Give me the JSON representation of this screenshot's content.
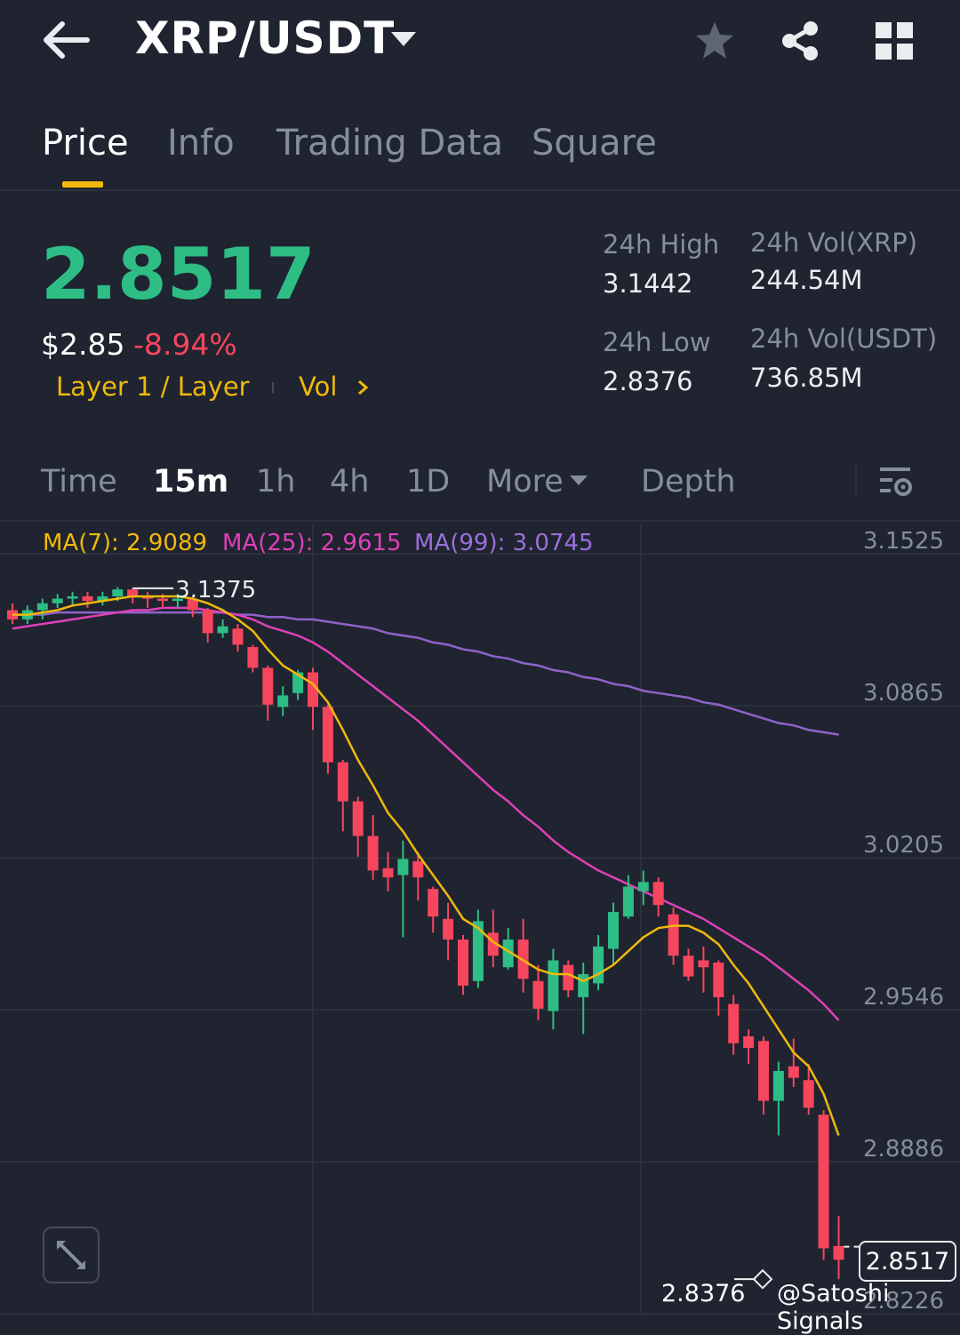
{
  "header": {
    "back_icon": "arrow-left-icon",
    "pair": "XRP/USDT",
    "icons": [
      "star-icon",
      "share-icon",
      "grid-icon"
    ]
  },
  "tabs": [
    {
      "label": "Price",
      "active": true
    },
    {
      "label": "Info"
    },
    {
      "label": "Trading Data"
    },
    {
      "label": "Square"
    }
  ],
  "ticker": {
    "price": "2.8517",
    "usd_price": "$2.85",
    "change": "-8.94%",
    "tag": "Layer 1 / Layer",
    "vol_link": "Vol",
    "stats": {
      "high_label": "24h High",
      "high": "3.1442",
      "low_label": "24h Low",
      "low": "2.8376",
      "vol_xrp_label": "24h Vol(XRP)",
      "vol_xrp": "244.54M",
      "vol_usdt_label": "24h Vol(USDT)",
      "vol_usdt": "736.85M"
    }
  },
  "intervals": {
    "items": [
      "Time",
      "15m",
      "1h",
      "4h",
      "1D",
      "More",
      "Depth"
    ],
    "active": "15m"
  },
  "ma": {
    "ma7": "MA(7): 2.9089",
    "ma25": "MA(25): 2.9615",
    "ma99": "MA(99): 3.0745"
  },
  "colors": {
    "up": "#2ebd85",
    "down": "#f6465d",
    "accent": "#f0b90b",
    "ma7": "#f0b90b",
    "ma25": "#e040b8",
    "ma99": "#8e63c9"
  },
  "chart_data": {
    "type": "candlestick",
    "y_ticks": [
      "3.1525",
      "3.0865",
      "3.0205",
      "2.9546",
      "2.8886",
      "2.8226"
    ],
    "ylim": [
      2.81,
      3.175
    ],
    "high_marker": "3.1375",
    "low_marker": "2.8376",
    "last_price": "2.8517",
    "watermark": "@Satoshi Signals",
    "candles": [
      [
        3.128,
        3.124,
        3.131,
        3.122
      ],
      [
        3.124,
        3.128,
        3.13,
        3.122
      ],
      [
        3.128,
        3.131,
        3.133,
        3.124
      ],
      [
        3.131,
        3.133,
        3.135,
        3.129
      ],
      [
        3.133,
        3.134,
        3.136,
        3.13
      ],
      [
        3.134,
        3.132,
        3.136,
        3.129
      ],
      [
        3.132,
        3.134,
        3.136,
        3.13
      ],
      [
        3.134,
        3.137,
        3.138,
        3.132
      ],
      [
        3.137,
        3.134,
        3.1375,
        3.131
      ],
      [
        3.134,
        3.133,
        3.136,
        3.129
      ],
      [
        3.133,
        3.132,
        3.135,
        3.129
      ],
      [
        3.132,
        3.133,
        3.135,
        3.129
      ],
      [
        3.133,
        3.128,
        3.134,
        3.125
      ],
      [
        3.128,
        3.118,
        3.129,
        3.114
      ],
      [
        3.118,
        3.121,
        3.124,
        3.116
      ],
      [
        3.12,
        3.113,
        3.122,
        3.11
      ],
      [
        3.112,
        3.103,
        3.113,
        3.101
      ],
      [
        3.103,
        3.087,
        3.104,
        3.08
      ],
      [
        3.086,
        3.091,
        3.095,
        3.082
      ],
      [
        3.092,
        3.101,
        3.102,
        3.089
      ],
      [
        3.101,
        3.086,
        3.103,
        3.076
      ],
      [
        3.086,
        3.062,
        3.087,
        3.057
      ],
      [
        3.062,
        3.045,
        3.063,
        3.032
      ],
      [
        3.045,
        3.03,
        3.047,
        3.021
      ],
      [
        3.03,
        3.015,
        3.039,
        3.011
      ],
      [
        3.016,
        3.012,
        3.023,
        3.006
      ],
      [
        3.013,
        3.02,
        3.028,
        2.986
      ],
      [
        3.019,
        3.012,
        3.023,
        3.002
      ],
      [
        3.007,
        2.995,
        3.008,
        2.988
      ],
      [
        2.994,
        2.985,
        3.001,
        2.976
      ],
      [
        2.985,
        2.965,
        2.987,
        2.961
      ],
      [
        2.967,
        2.993,
        2.998,
        2.964
      ],
      [
        2.988,
        2.978,
        2.998,
        2.973
      ],
      [
        2.973,
        2.985,
        2.99,
        2.972
      ],
      [
        2.985,
        2.968,
        2.994,
        2.962
      ],
      [
        2.967,
        2.955,
        2.974,
        2.95
      ],
      [
        2.954,
        2.976,
        2.981,
        2.946
      ],
      [
        2.974,
        2.963,
        2.976,
        2.96
      ],
      [
        2.96,
        2.97,
        2.975,
        2.944
      ],
      [
        2.966,
        2.982,
        2.987,
        2.963
      ],
      [
        2.981,
        2.997,
        3.001,
        2.974
      ],
      [
        2.995,
        3.008,
        3.013,
        2.994
      ],
      [
        3.006,
        3.01,
        3.015,
        3.0
      ],
      [
        3.01,
        3.0,
        3.012,
        2.995
      ],
      [
        2.996,
        2.978,
        2.999,
        2.974
      ],
      [
        2.978,
        2.969,
        2.981,
        2.967
      ],
      [
        2.976,
        2.973,
        2.982,
        2.962
      ],
      [
        2.975,
        2.96,
        2.976,
        2.952
      ],
      [
        2.957,
        2.94,
        2.961,
        2.935
      ],
      [
        2.943,
        2.938,
        2.946,
        2.931
      ],
      [
        2.941,
        2.915,
        2.943,
        2.909
      ],
      [
        2.915,
        2.928,
        2.932,
        2.9
      ],
      [
        2.93,
        2.925,
        2.942,
        2.921
      ],
      [
        2.924,
        2.912,
        2.931,
        2.909
      ],
      [
        2.909,
        2.851,
        2.911,
        2.846
      ],
      [
        2.852,
        2.846,
        2.865,
        2.8376
      ]
    ],
    "ma7_line": [
      3.126,
      3.126,
      3.127,
      3.128,
      3.13,
      3.131,
      3.132,
      3.133,
      3.134,
      3.134,
      3.134,
      3.134,
      3.133,
      3.131,
      3.128,
      3.124,
      3.119,
      3.111,
      3.104,
      3.1,
      3.096,
      3.088,
      3.076,
      3.063,
      3.052,
      3.04,
      3.032,
      3.022,
      3.013,
      3.004,
      2.994,
      2.99,
      2.984,
      2.98,
      2.976,
      2.972,
      2.97,
      2.97,
      2.967,
      2.97,
      2.974,
      2.98,
      2.986,
      2.99,
      2.991,
      2.991,
      2.988,
      2.983,
      2.974,
      2.966,
      2.956,
      2.946,
      2.936,
      2.93,
      2.918,
      2.9
    ],
    "ma25_line": [
      3.12,
      3.121,
      3.122,
      3.123,
      3.124,
      3.125,
      3.126,
      3.127,
      3.128,
      3.128,
      3.129,
      3.129,
      3.129,
      3.128,
      3.127,
      3.126,
      3.124,
      3.121,
      3.119,
      3.117,
      3.114,
      3.11,
      3.105,
      3.1,
      3.095,
      3.09,
      3.085,
      3.08,
      3.074,
      3.068,
      3.062,
      3.056,
      3.05,
      3.045,
      3.039,
      3.034,
      3.028,
      3.023,
      3.019,
      3.015,
      3.012,
      3.009,
      3.006,
      3.003,
      3.0,
      2.997,
      2.994,
      2.99,
      2.986,
      2.982,
      2.978,
      2.973,
      2.968,
      2.963,
      2.957,
      2.95
    ],
    "ma99_line": [
      3.126,
      3.126,
      3.126,
      3.127,
      3.127,
      3.127,
      3.127,
      3.127,
      3.127,
      3.127,
      3.127,
      3.127,
      3.127,
      3.127,
      3.127,
      3.126,
      3.126,
      3.125,
      3.125,
      3.124,
      3.124,
      3.123,
      3.122,
      3.121,
      3.12,
      3.118,
      3.117,
      3.116,
      3.114,
      3.113,
      3.111,
      3.11,
      3.108,
      3.107,
      3.105,
      3.104,
      3.102,
      3.101,
      3.099,
      3.098,
      3.096,
      3.095,
      3.093,
      3.092,
      3.091,
      3.09,
      3.088,
      3.087,
      3.085,
      3.083,
      3.081,
      3.079,
      3.078,
      3.076,
      3.075,
      3.074
    ]
  }
}
